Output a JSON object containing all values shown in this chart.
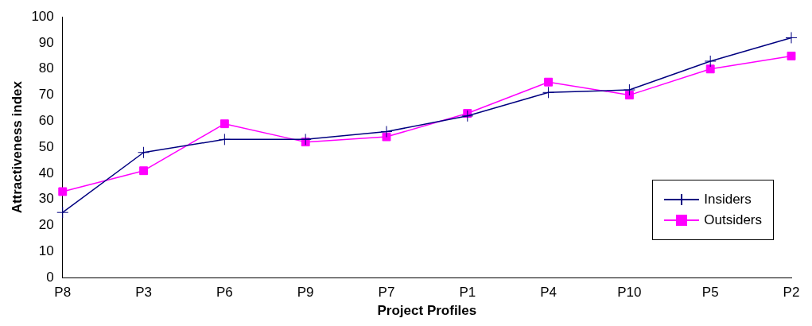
{
  "chart_data": {
    "type": "line",
    "xlabel": "Project Profiles",
    "ylabel": "Attractiveness index",
    "categories": [
      "P8",
      "P3",
      "P6",
      "P9",
      "P7",
      "P1",
      "P4",
      "P10",
      "P5",
      "P2"
    ],
    "series": [
      {
        "name": "Insiders",
        "color": "#000080",
        "marker": "cross",
        "values": [
          25,
          48,
          53,
          53,
          56,
          62,
          71,
          72,
          83,
          92
        ]
      },
      {
        "name": "Outsiders",
        "color": "#ff00ff",
        "marker": "square",
        "values": [
          33,
          41,
          59,
          52,
          54,
          63,
          75,
          70,
          80,
          85
        ]
      }
    ],
    "ylim": [
      0,
      100
    ],
    "yticks": [
      0,
      10,
      20,
      30,
      40,
      50,
      60,
      70,
      80,
      90,
      100
    ],
    "grid": false,
    "legend": "bottom right"
  }
}
